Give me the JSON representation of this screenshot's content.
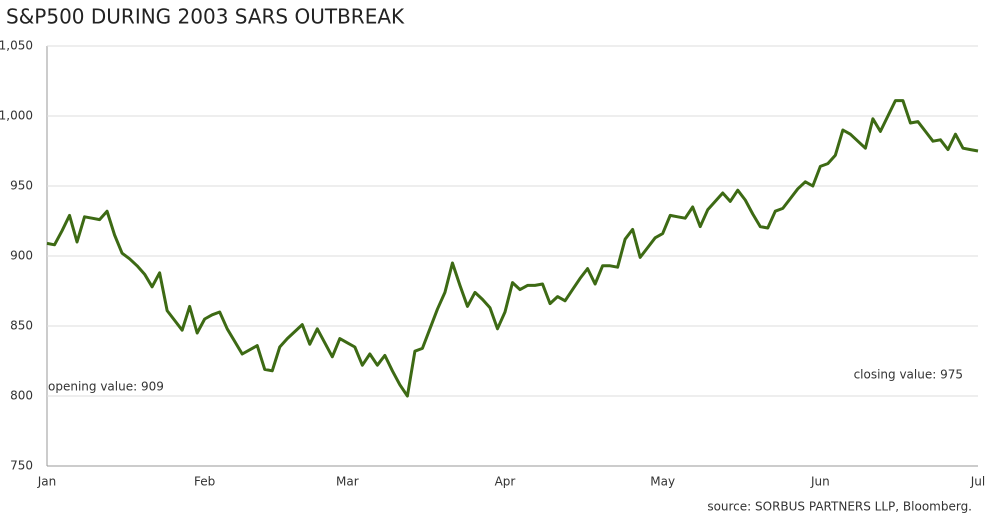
{
  "chart_data": {
    "type": "line",
    "title": "S&P500 DURING 2003 SARS OUTBREAK",
    "annotations": [
      "opening value: 909",
      "closing value: 975"
    ],
    "source": "source: SORBUS PARTNERS LLP, Bloomberg.",
    "categories": [
      "Jan",
      null,
      null,
      null,
      null,
      null,
      null,
      null,
      null,
      null,
      null,
      null,
      null,
      null,
      null,
      null,
      null,
      null,
      null,
      null,
      null,
      "Feb",
      null,
      null,
      null,
      null,
      null,
      null,
      null,
      null,
      null,
      null,
      null,
      null,
      null,
      null,
      null,
      null,
      null,
      null,
      "Mar",
      null,
      null,
      null,
      null,
      null,
      null,
      null,
      null,
      null,
      null,
      null,
      null,
      null,
      null,
      null,
      null,
      null,
      null,
      null,
      null,
      "Apr",
      null,
      null,
      null,
      null,
      null,
      null,
      null,
      null,
      null,
      null,
      null,
      null,
      null,
      null,
      null,
      null,
      null,
      null,
      null,
      null,
      "May",
      null,
      null,
      null,
      null,
      null,
      null,
      null,
      null,
      null,
      null,
      null,
      null,
      null,
      null,
      null,
      null,
      null,
      null,
      null,
      null,
      "Jun",
      null,
      null,
      null,
      null,
      null,
      null,
      null,
      null,
      null,
      null,
      null,
      null,
      null,
      null,
      null,
      null,
      null,
      null,
      null,
      null,
      "Jul"
    ],
    "series": [
      {
        "name": "S&P500",
        "color": "#3d6a14",
        "values": [
          909,
          908,
          918,
          929,
          910,
          928,
          927,
          926,
          932,
          915,
          902,
          898,
          893,
          887,
          878,
          888,
          861,
          854,
          847,
          864,
          845,
          855,
          858,
          860,
          848,
          839,
          830,
          833,
          836,
          819,
          818,
          835,
          841,
          846,
          851,
          837,
          848,
          838,
          828,
          841,
          838,
          835,
          822,
          830,
          822,
          829,
          818,
          808,
          800,
          832,
          834,
          848,
          862,
          874,
          895,
          879,
          864,
          874,
          869,
          863,
          848,
          860,
          881,
          876,
          879,
          879,
          880,
          866,
          871,
          868,
          876,
          884,
          891,
          880,
          893,
          893,
          892,
          912,
          919,
          899,
          906,
          913,
          916,
          929,
          928,
          927,
          935,
          921,
          933,
          939,
          945,
          939,
          947,
          940,
          930,
          921,
          920,
          932,
          934,
          941,
          948,
          953,
          950,
          964,
          966,
          972,
          990,
          987,
          982,
          977,
          998,
          989,
          1000,
          1011,
          1011,
          995,
          996,
          989,
          982,
          983,
          976,
          987,
          977,
          976,
          975
        ]
      }
    ],
    "ylim": [
      750,
      1050
    ],
    "yticks": [
      750,
      800,
      850,
      900,
      950,
      {
        "value": 1000,
        "label": "1,000"
      },
      {
        "value": 1050,
        "label": "1,050"
      }
    ],
    "grid": true
  }
}
